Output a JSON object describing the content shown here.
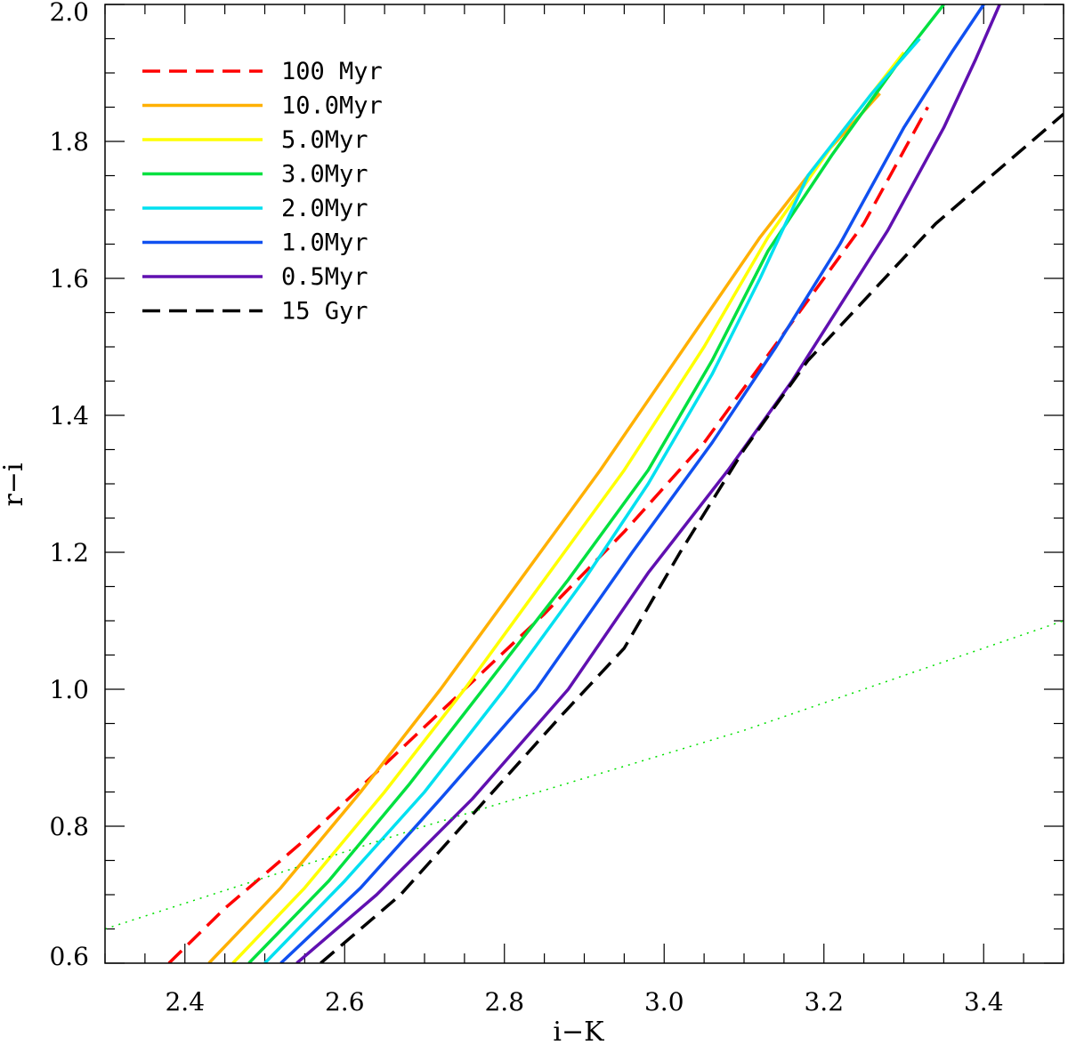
{
  "chart_data": {
    "type": "line",
    "title": "",
    "xlabel": "i−K",
    "ylabel": "r−i",
    "xlim": [
      2.3,
      3.5
    ],
    "ylim": [
      0.6,
      2.0
    ],
    "x_ticks": [
      "2.4",
      "2.6",
      "2.8",
      "3.0",
      "3.2",
      "3.4"
    ],
    "x_tick_values": [
      2.4,
      2.6,
      2.8,
      3.0,
      3.2,
      3.4
    ],
    "y_ticks": [
      "0.6",
      "0.8",
      "1.0",
      "1.2",
      "1.4",
      "1.6",
      "1.8",
      "2.0"
    ],
    "y_tick_values": [
      0.6,
      0.8,
      1.0,
      1.2,
      1.4,
      1.6,
      1.8,
      2.0
    ],
    "legend_position": "top-left",
    "series": [
      {
        "name": "100 Myr",
        "color": "#ff0000",
        "style": "dashed",
        "x": [
          2.38,
          2.45,
          2.55,
          2.65,
          2.75,
          2.85,
          2.95,
          3.05,
          3.15,
          3.25,
          3.33
        ],
        "y": [
          0.6,
          0.68,
          0.78,
          0.89,
          1.0,
          1.11,
          1.23,
          1.36,
          1.52,
          1.68,
          1.85
        ]
      },
      {
        "name": "10.0Myr",
        "color": "#ffb000",
        "style": "solid",
        "x": [
          2.43,
          2.52,
          2.62,
          2.72,
          2.82,
          2.92,
          3.02,
          3.12,
          3.2,
          3.27
        ],
        "y": [
          0.6,
          0.71,
          0.85,
          1.0,
          1.16,
          1.32,
          1.49,
          1.66,
          1.78,
          1.87
        ]
      },
      {
        "name": "5.0Myr",
        "color": "#ffff00",
        "style": "solid",
        "x": [
          2.46,
          2.55,
          2.65,
          2.75,
          2.85,
          2.95,
          3.05,
          3.13,
          3.22,
          3.3
        ],
        "y": [
          0.6,
          0.71,
          0.85,
          1.0,
          1.16,
          1.32,
          1.5,
          1.66,
          1.81,
          1.93
        ]
      },
      {
        "name": "3.0Myr",
        "color": "#00e040",
        "style": "solid",
        "x": [
          2.48,
          2.58,
          2.68,
          2.78,
          2.88,
          2.98,
          3.06,
          3.13,
          3.21,
          3.29,
          3.35
        ],
        "y": [
          0.6,
          0.72,
          0.86,
          1.01,
          1.16,
          1.32,
          1.48,
          1.64,
          1.78,
          1.91,
          2.0
        ]
      },
      {
        "name": "2.0Myr",
        "color": "#00e0f0",
        "style": "solid",
        "x": [
          2.5,
          2.6,
          2.7,
          2.8,
          2.9,
          2.98,
          3.06,
          3.12,
          3.18,
          3.26,
          3.32
        ],
        "y": [
          0.6,
          0.72,
          0.85,
          1.0,
          1.16,
          1.3,
          1.46,
          1.6,
          1.75,
          1.87,
          1.95
        ]
      },
      {
        "name": "1.0Myr",
        "color": "#1050f0",
        "style": "solid",
        "x": [
          2.52,
          2.62,
          2.72,
          2.84,
          2.96,
          3.06,
          3.14,
          3.22,
          3.3,
          3.36,
          3.4
        ],
        "y": [
          0.6,
          0.71,
          0.84,
          1.0,
          1.2,
          1.36,
          1.5,
          1.65,
          1.82,
          1.93,
          2.0
        ]
      },
      {
        "name": "0.5Myr",
        "color": "#6010b0",
        "style": "solid",
        "x": [
          2.54,
          2.64,
          2.76,
          2.88,
          2.98,
          3.08,
          3.16,
          3.22,
          3.28,
          3.35,
          3.39,
          3.42
        ],
        "y": [
          0.6,
          0.7,
          0.84,
          1.0,
          1.17,
          1.32,
          1.45,
          1.56,
          1.67,
          1.82,
          1.92,
          2.0
        ]
      },
      {
        "name": "15 Gyr",
        "color": "#000000",
        "style": "dashed",
        "x": [
          2.57,
          2.67,
          2.77,
          2.87,
          2.95,
          3.02,
          3.1,
          3.18,
          3.26,
          3.34,
          3.42,
          3.5
        ],
        "y": [
          0.6,
          0.7,
          0.83,
          0.96,
          1.06,
          1.2,
          1.35,
          1.48,
          1.58,
          1.68,
          1.76,
          1.84
        ]
      },
      {
        "name": "",
        "color": "#00e000",
        "style": "dotted",
        "x": [
          2.3,
          2.5,
          2.7,
          2.9,
          3.1,
          3.3,
          3.5
        ],
        "y": [
          0.65,
          0.725,
          0.8,
          0.87,
          0.94,
          1.02,
          1.1
        ]
      }
    ]
  }
}
